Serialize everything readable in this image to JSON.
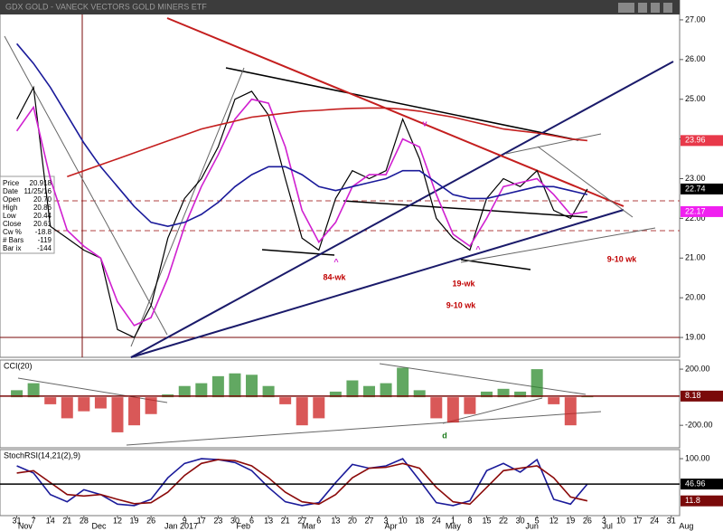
{
  "chart_data": [
    {
      "type": "line",
      "title": "GDX GOLD - VANECK VECTORS GOLD MINERS ETF",
      "x": [
        0,
        1,
        2,
        3,
        4,
        5,
        6,
        7,
        8,
        9,
        10,
        11,
        12,
        13,
        14,
        15,
        16,
        17,
        18,
        19,
        20,
        21,
        22,
        23,
        24,
        25,
        26,
        27,
        28,
        29,
        30,
        31,
        32,
        33,
        34
      ],
      "xlim": [
        -1,
        39.5
      ],
      "xticks": [
        {
          "value": 0,
          "label": "31"
        },
        {
          "value": 1,
          "label": "7"
        },
        {
          "value": 2,
          "label": "14"
        },
        {
          "value": 3,
          "label": "21"
        },
        {
          "value": 4,
          "label": "28"
        },
        {
          "value": 6,
          "label": "12"
        },
        {
          "value": 7,
          "label": "19"
        },
        {
          "value": 8,
          "label": "26"
        },
        {
          "value": 10,
          "label": "9"
        },
        {
          "value": 11,
          "label": "17"
        },
        {
          "value": 12,
          "label": "23"
        },
        {
          "value": 13,
          "label": "30"
        },
        {
          "value": 14,
          "label": "6"
        },
        {
          "value": 15,
          "label": "13"
        },
        {
          "value": 16,
          "label": "21"
        },
        {
          "value": 17,
          "label": "27"
        },
        {
          "value": 18,
          "label": "6"
        },
        {
          "value": 19,
          "label": "13"
        },
        {
          "value": 20,
          "label": "20"
        },
        {
          "value": 21,
          "label": "27"
        },
        {
          "value": 22,
          "label": "3"
        },
        {
          "value": 23,
          "label": "10"
        },
        {
          "value": 24,
          "label": "18"
        },
        {
          "value": 25,
          "label": "24"
        },
        {
          "value": 26,
          "label": "1"
        },
        {
          "value": 27,
          "label": "8"
        },
        {
          "value": 28,
          "label": "15"
        },
        {
          "value": 29,
          "label": "22"
        },
        {
          "value": 30,
          "label": "30"
        },
        {
          "value": 31,
          "label": "5"
        },
        {
          "value": 32,
          "label": "12"
        },
        {
          "value": 33,
          "label": "19"
        },
        {
          "value": 34,
          "label": "26"
        },
        {
          "value": 35,
          "label": "3"
        },
        {
          "value": 36,
          "label": "10"
        },
        {
          "value": 37,
          "label": "17"
        },
        {
          "value": 38,
          "label": "24"
        },
        {
          "value": 39,
          "label": "31"
        }
      ],
      "xmonths": [
        {
          "value": 0.5,
          "label": "Nov"
        },
        {
          "value": 4.9,
          "label": "Dec"
        },
        {
          "value": 9.8,
          "label": "Jan 2017"
        },
        {
          "value": 13.5,
          "label": "Feb"
        },
        {
          "value": 17.4,
          "label": "Mar"
        },
        {
          "value": 22.3,
          "label": "Apr"
        },
        {
          "value": 26,
          "label": "May"
        },
        {
          "value": 30.7,
          "label": "Jun"
        },
        {
          "value": 35.2,
          "label": "Jul"
        },
        {
          "value": 39.9,
          "label": "Aug"
        }
      ],
      "ylim": [
        18.5,
        27.5
      ],
      "yticks": [
        {
          "value": 19,
          "label": "19.00"
        },
        {
          "value": 20,
          "label": "20.00"
        },
        {
          "value": 21,
          "label": "21.00"
        },
        {
          "value": 22,
          "label": "22.00"
        },
        {
          "value": 23,
          "label": "23.00"
        },
        {
          "value": 24,
          "label": "24.00"
        },
        {
          "value": 25,
          "label": "25.00"
        },
        {
          "value": 26,
          "label": "26.00"
        },
        {
          "value": 27,
          "label": "27.00"
        }
      ],
      "series": [
        {
          "color": "#000000",
          "values": [
            24.5,
            25.3,
            21.8,
            21.5,
            21.2,
            21.0,
            19.2,
            19.0,
            19.8,
            21.5,
            22.5,
            23.0,
            23.8,
            25.0,
            25.2,
            24.6,
            23.0,
            21.5,
            21.2,
            22.5,
            23.2,
            23.0,
            23.2,
            24.5,
            23.5,
            22.0,
            21.5,
            21.2,
            22.5,
            23.0,
            22.8,
            23.2,
            22.2,
            22.0,
            22.74
          ]
        },
        {
          "color": "#d020d0",
          "values": [
            24.2,
            24.8,
            23.0,
            21.7,
            21.3,
            21.0,
            19.9,
            19.3,
            19.5,
            20.5,
            21.8,
            22.8,
            23.6,
            24.5,
            25.0,
            24.9,
            23.8,
            22.2,
            21.4,
            21.9,
            22.8,
            23.1,
            23.1,
            24.0,
            23.8,
            22.6,
            21.6,
            21.3,
            22.0,
            22.8,
            22.9,
            23.0,
            22.6,
            22.1,
            22.17
          ]
        },
        {
          "color": "#1a1a9a",
          "values": [
            26.4,
            25.9,
            25.3,
            24.6,
            23.9,
            23.3,
            22.8,
            22.3,
            21.9,
            21.8,
            21.9,
            22.1,
            22.4,
            22.8,
            23.1,
            23.3,
            23.3,
            23.1,
            22.8,
            22.7,
            22.8,
            22.9,
            23.0,
            23.2,
            23.2,
            22.9,
            22.6,
            22.5,
            22.5,
            22.6,
            22.7,
            22.8,
            22.8,
            22.7,
            22.6
          ]
        },
        {
          "color": "#c41e1e",
          "values": [
            null,
            null,
            null,
            23.05,
            23.2,
            23.35,
            23.5,
            23.65,
            23.8,
            23.95,
            24.1,
            24.25,
            24.35,
            24.45,
            24.55,
            24.6,
            24.65,
            24.7,
            24.72,
            24.75,
            24.77,
            24.78,
            24.78,
            24.75,
            24.7,
            24.62,
            24.55,
            24.45,
            24.35,
            24.25,
            24.2,
            24.15,
            24.08,
            24.0,
            23.96
          ]
        }
      ],
      "markers": [
        {
          "value": 23.96,
          "color": "#e8394a"
        },
        {
          "value": 22.74,
          "color": "#000000"
        },
        {
          "value": 22.17,
          "color": "#f020f0"
        }
      ],
      "info": [
        [
          "Price",
          "20.918"
        ],
        [
          "Date",
          "11/25/16"
        ],
        [
          "Open",
          "20.70"
        ],
        [
          "High",
          "20.86"
        ],
        [
          "Low",
          "20.44"
        ],
        [
          "Close",
          "20.61"
        ],
        [
          "Cw %",
          "-18.8"
        ],
        [
          "# Bars",
          "-119"
        ],
        [
          "Bar ix",
          "-144"
        ]
      ],
      "annotations": [
        {
          "text": "84-wk",
          "color": "#c00000"
        },
        {
          "text": "19-wk",
          "color": "#c00000"
        },
        {
          "text": "9-10 wk",
          "color": "#c00000"
        },
        {
          "text": "9-10 wk",
          "color": "#c00000"
        },
        {
          "text": "v",
          "color": "#d020d0"
        },
        {
          "text": "^",
          "color": "#d020d0"
        },
        {
          "text": "^",
          "color": "#d020d0"
        }
      ]
    },
    {
      "type": "bar",
      "title": "CCI(20)",
      "ylim": [
        -360,
        265
      ],
      "yticks": [
        {
          "value": 200,
          "label": "200.00"
        },
        {
          "value": -200,
          "label": "-200.00"
        }
      ],
      "values": [
        50,
        100,
        -50,
        -150,
        -100,
        -80,
        -250,
        -200,
        -120,
        20,
        80,
        100,
        150,
        170,
        160,
        80,
        -50,
        -200,
        -150,
        40,
        120,
        80,
        100,
        210,
        50,
        -150,
        -180,
        -120,
        40,
        60,
        40,
        200,
        -50,
        -200,
        8.18
      ],
      "color_up": "#2e8b2e",
      "color_down": "#cc2020",
      "markers": [
        {
          "value": 8.18,
          "color": "#7a0a0a",
          "line": true
        }
      ],
      "annotations": [
        {
          "text": "d",
          "color": "#1a7a1a"
        }
      ]
    },
    {
      "type": "line",
      "title": "StochRSI(14,21(2),9)",
      "ylim": [
        -19,
        119
      ],
      "yticks": [
        {
          "value": 100,
          "label": "100.00"
        }
      ],
      "series": [
        {
          "color": "#1a1a9a",
          "values": [
            85,
            70,
            25,
            10,
            35,
            25,
            5,
            2,
            15,
            60,
            90,
            100,
            98,
            92,
            75,
            40,
            10,
            2,
            8,
            50,
            88,
            80,
            85,
            100,
            55,
            8,
            2,
            12,
            75,
            90,
            72,
            98,
            15,
            5,
            46.96
          ]
        },
        {
          "color": "#8b0a0a",
          "values": [
            70,
            75,
            50,
            25,
            22,
            25,
            15,
            6,
            8,
            30,
            65,
            90,
            98,
            96,
            85,
            60,
            30,
            10,
            5,
            25,
            60,
            80,
            82,
            90,
            80,
            40,
            10,
            5,
            40,
            75,
            80,
            85,
            60,
            20,
            11.8
          ]
        }
      ],
      "markers": [
        {
          "value": 46.96,
          "color": "#000000",
          "line": true
        },
        {
          "value": 11.8,
          "color": "#7a0a0a"
        }
      ]
    }
  ]
}
